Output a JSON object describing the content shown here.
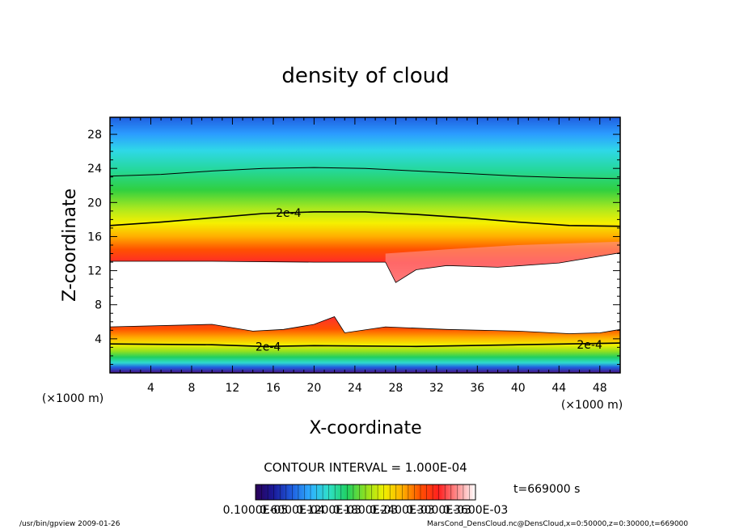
{
  "chart_data": {
    "type": "heatmap",
    "title": "density of cloud",
    "xlabel": "X-coordinate",
    "ylabel": "Z-coordinate",
    "x_unit": "(×1000 m)",
    "y_unit": "(×1000 m)",
    "xlim": [
      0,
      50
    ],
    "ylim": [
      0,
      30
    ],
    "x_ticks": [
      "4",
      "8",
      "12",
      "16",
      "20",
      "24",
      "28",
      "32",
      "36",
      "40",
      "44",
      "48"
    ],
    "y_ticks": [
      "4",
      "8",
      "12",
      "16",
      "20",
      "24",
      "28"
    ],
    "grid": false,
    "contour_interval_text": "CONTOUR INTERVAL = 1.000E-04",
    "contour_labels": [
      {
        "text": "2e-4",
        "x": 17.5,
        "y": 18.8
      },
      {
        "text": "2e-4",
        "x": 15.5,
        "y": 3.1
      },
      {
        "text": "2e-4",
        "x": 47.0,
        "y": 3.3
      }
    ],
    "upper_layer": {
      "top_2e4": [
        [
          0,
          17.3
        ],
        [
          5,
          17.7
        ],
        [
          10,
          18.2
        ],
        [
          15,
          18.7
        ],
        [
          20,
          18.9
        ],
        [
          25,
          18.9
        ],
        [
          30,
          18.6
        ],
        [
          35,
          18.2
        ],
        [
          40,
          17.7
        ],
        [
          45,
          17.3
        ],
        [
          50,
          17.2
        ]
      ],
      "upper_thin_contour": [
        [
          0,
          23.1
        ],
        [
          5,
          23.3
        ],
        [
          10,
          23.7
        ],
        [
          15,
          24.0
        ],
        [
          20,
          24.1
        ],
        [
          25,
          24.0
        ],
        [
          30,
          23.7
        ],
        [
          35,
          23.4
        ],
        [
          40,
          23.1
        ],
        [
          45,
          22.9
        ],
        [
          50,
          22.8
        ]
      ],
      "bottom_edge": [
        [
          0,
          13.1
        ],
        [
          10,
          13.1
        ],
        [
          20,
          13.0
        ],
        [
          27,
          13.0
        ],
        [
          28,
          10.6
        ],
        [
          30,
          12.1
        ],
        [
          33,
          12.6
        ],
        [
          38,
          12.4
        ],
        [
          44,
          12.9
        ],
        [
          50,
          14.1
        ]
      ]
    },
    "lower_layer": {
      "top_edge": [
        [
          0,
          5.4
        ],
        [
          10,
          5.7
        ],
        [
          14,
          4.9
        ],
        [
          17,
          5.1
        ],
        [
          20,
          5.7
        ],
        [
          22,
          6.6
        ],
        [
          23,
          4.7
        ],
        [
          27,
          5.4
        ],
        [
          33,
          5.1
        ],
        [
          40,
          4.9
        ],
        [
          45,
          4.6
        ],
        [
          48,
          4.7
        ],
        [
          50,
          5.1
        ]
      ],
      "contour_2e4": [
        [
          0,
          3.4
        ],
        [
          10,
          3.3
        ],
        [
          15,
          3.1
        ],
        [
          20,
          3.2
        ],
        [
          30,
          3.1
        ],
        [
          40,
          3.3
        ],
        [
          50,
          3.5
        ]
      ]
    },
    "colorbar": {
      "tick_labels": [
        "0.1000E-05",
        "0.6000E-04",
        "0.1200E-03",
        "0.1800E-03",
        "0.2400E-03",
        "0.3000E-03",
        "0.3600E-03"
      ],
      "colors": [
        "#2a0056",
        "#1a1a9a",
        "#1f5fe0",
        "#2fb0ff",
        "#2fe0c8",
        "#20d060",
        "#8fe020",
        "#f0f000",
        "#ffb000",
        "#ff5000",
        "#ff2020",
        "#ff9090",
        "#ffffff"
      ]
    },
    "time_text": "t=669000 s"
  },
  "footer": {
    "left": "/usr/bin/gpview  2009-01-26",
    "right": "MarsCond_DensCloud.nc@DensCloud,x=0:50000,z=0:30000,t=669000"
  }
}
